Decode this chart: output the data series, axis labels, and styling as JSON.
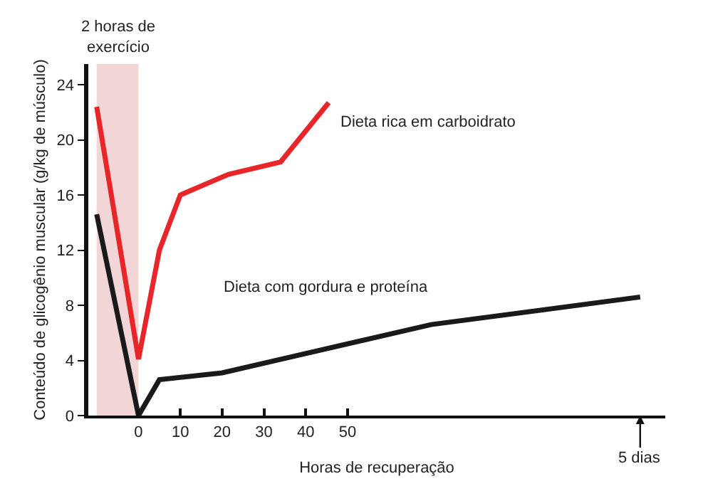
{
  "chart_data": {
    "type": "line",
    "xlabel": "Horas de recuperação",
    "ylabel": "Conteúdo de glicogênio muscular (g/kg de músculo)",
    "series": [
      {
        "name": "Dieta rica em carboidrato",
        "color": "#e8262a",
        "x": [
          -10,
          0,
          5,
          10,
          21.5,
          34,
          45.5
        ],
        "values": [
          22.4,
          4.1,
          12,
          16,
          17.5,
          18.4,
          22.7
        ]
      },
      {
        "name": "Dieta com gordura e proteína",
        "color": "#1a1a1a",
        "x": [
          -10,
          0,
          5,
          20,
          70,
          120
        ],
        "values": [
          14.6,
          0,
          2.6,
          3.1,
          6.6,
          8.6
        ]
      }
    ],
    "xlim": [
      -12,
      126
    ],
    "xticks": [
      0,
      10,
      20,
      30,
      40,
      50
    ],
    "annotations": [
      "5 dias"
    ],
    "ylim": [
      0,
      25.5
    ],
    "yticks": [
      0,
      4,
      8,
      12,
      16,
      20,
      24
    ],
    "bands": [
      {
        "axis": "x",
        "from": -10,
        "to": 0,
        "label": "2 horas de exercício",
        "color": "#f2d5d6"
      }
    ],
    "grid": false,
    "legend": false,
    "marker": "none",
    "line_style": "solid"
  }
}
